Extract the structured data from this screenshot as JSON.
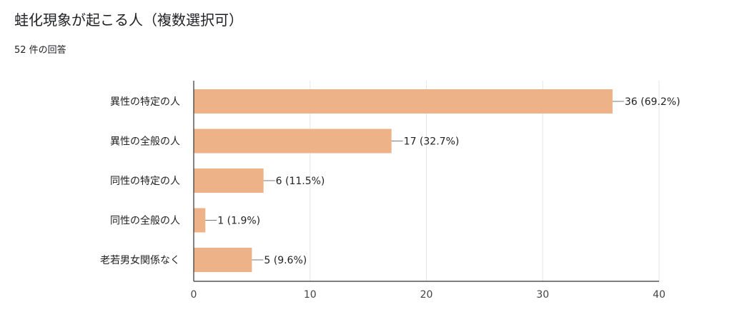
{
  "header": {
    "title": "蛙化現象が起こる人（複数選択可）",
    "response_count": "52 件の回答"
  },
  "chart_data": {
    "type": "bar",
    "orientation": "horizontal",
    "categories": [
      "異性の特定の人",
      "異性の全般の人",
      "同性の特定の人",
      "同性の全般の人",
      "老若男女関係なく"
    ],
    "values": [
      36,
      17,
      6,
      1,
      5
    ],
    "data_labels": [
      "36 (69.2%)",
      "17 (32.7%)",
      "6 (11.5%)",
      "1 (1.9%)",
      "5 (9.6%)"
    ],
    "xlim": [
      0,
      40
    ],
    "x_ticks": [
      0,
      10,
      20,
      30,
      40
    ],
    "grid": true,
    "legend": "none",
    "bar_color": "#EDB287"
  }
}
